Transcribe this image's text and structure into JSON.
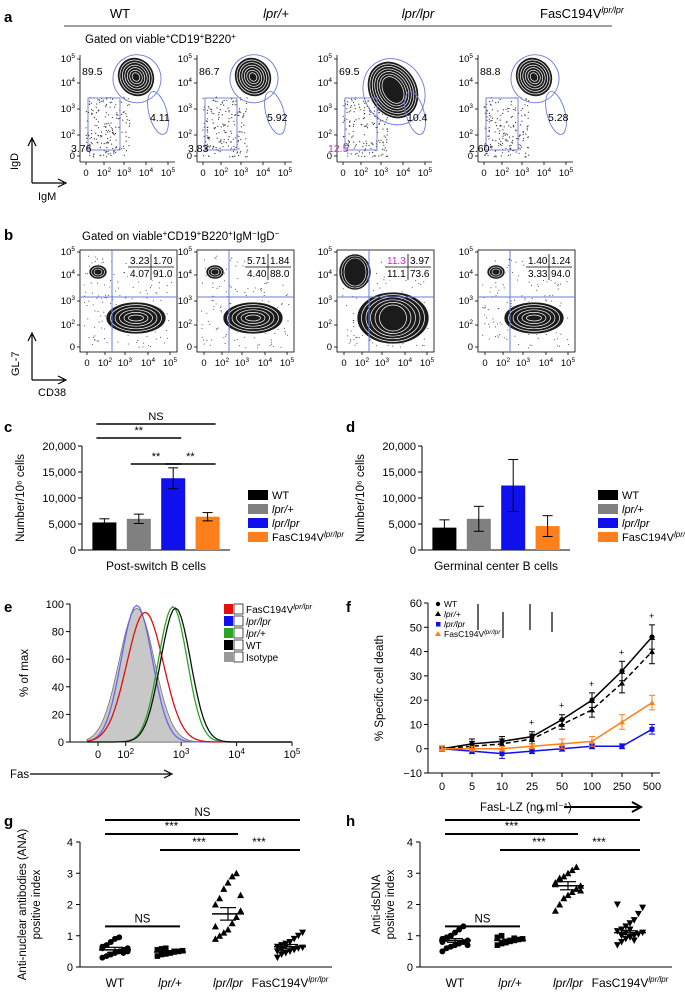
{
  "figure": {
    "panel_letters": [
      "a",
      "b",
      "c",
      "d",
      "e",
      "f",
      "g",
      "h"
    ],
    "genotypes": [
      {
        "base": "WT",
        "sup": ""
      },
      {
        "base": "lpr/+",
        "sup": ""
      },
      {
        "base": "lpr/lpr",
        "sup": ""
      },
      {
        "base": "FasC194V",
        "sup": "lpr/lpr"
      }
    ],
    "colors": {
      "wt": "#000000",
      "het": "#808080",
      "lpr": "#1010ee",
      "fasc": "#ff7f1a",
      "gate": "#6a7bd8",
      "magenta": "#e020d0",
      "fas_red": "#e01010",
      "fas_green": "#2aa52a",
      "fas_blue": "#6868e8",
      "isotype_fill": "#c8c8c8"
    }
  },
  "panel_a": {
    "gate_label": "Gated on viable+CD19+B220+",
    "gate_text": {
      "pre": "Gated on viable",
      "sup": "+",
      "mid": "CD19",
      "sup2": "+",
      "post": "B220",
      "sup3": "+"
    },
    "y_axis_label": "IgD",
    "x_axis_label": "IgM",
    "y_ticks": [
      "0",
      "10²",
      "10³",
      "10⁴",
      "10⁵"
    ],
    "x_ticks": [
      "0",
      "10²",
      "10³",
      "10⁴",
      "10⁵"
    ],
    "y_ticks_plain": [
      "0",
      "10",
      "10",
      "10",
      "10"
    ],
    "x_ticks_plain": [
      "0",
      "10",
      "10",
      "10",
      "10"
    ],
    "tick_exponents": [
      "",
      "2",
      "3",
      "4",
      "5"
    ],
    "gates": [
      {
        "top": "89.5",
        "right": "4.11",
        "bottom_left": "3.76",
        "bottom_left_color": "#000000"
      },
      {
        "top": "86.7",
        "right": "5.92",
        "bottom_left": "3.83",
        "bottom_left_color": "#000000"
      },
      {
        "top": "69.5",
        "right": "10.4",
        "bottom_left": "12.5",
        "bottom_left_color": "#e020d0"
      },
      {
        "top": "88.8",
        "right": "5.28",
        "bottom_left": "2.60",
        "bottom_left_color": "#000000"
      }
    ]
  },
  "panel_b": {
    "gate_text": {
      "pre": "Gated on viable",
      "sup": "+",
      "mid": "CD19",
      "sup2": "+",
      "post1": "B220",
      "sup3": "+",
      "post2": "IgM",
      "sup4": "−",
      "post3": "IgD",
      "sup5": "−"
    },
    "y_axis_label": "GL-7",
    "x_axis_label": "CD38",
    "quadrants": [
      {
        "q": [
          "3.23",
          "1.70",
          "4.07",
          "91.0"
        ],
        "q1_color": "#000000"
      },
      {
        "q": [
          "5.71",
          "1.84",
          "4.40",
          "88.0"
        ],
        "q1_color": "#000000"
      },
      {
        "q": [
          "11.3",
          "3.97",
          "11.1",
          "73.6"
        ],
        "q1_color": "#e020d0"
      },
      {
        "q": [
          "1.40",
          "1.24",
          "3.33",
          "94.0"
        ],
        "q1_color": "#000000"
      }
    ]
  },
  "panel_c": {
    "chart_data": {
      "type": "bar",
      "categories": [
        "WT",
        "lpr/+",
        "lpr/lpr",
        "FasC194V lpr/lpr"
      ],
      "values": [
        5300,
        6000,
        13800,
        6400
      ],
      "errors": [
        700,
        900,
        2000,
        800
      ],
      "ylabel": "Number/10⁶ cells",
      "xlabel": "Post-switch B cells",
      "ylim": [
        0,
        20000
      ],
      "yticks": [
        "0",
        "5,000",
        "10,000",
        "15,000",
        "20,000"
      ],
      "significance": [
        {
          "label": "NS",
          "from": 0,
          "to": 3
        },
        {
          "label": "**",
          "from": 0,
          "to": 2
        },
        {
          "label": "**",
          "from": 1,
          "to": 2
        },
        {
          "label": "**",
          "from": 2,
          "to": 3
        }
      ]
    },
    "legend": [
      "WT",
      "lpr/+",
      "lpr/lpr",
      "FasC194V"
    ]
  },
  "panel_d": {
    "chart_data": {
      "type": "bar",
      "categories": [
        "WT",
        "lpr/+",
        "lpr/lpr",
        "FasC194V lpr/lpr"
      ],
      "values": [
        4300,
        6000,
        12400,
        4600
      ],
      "errors": [
        1500,
        2400,
        5000,
        2000
      ],
      "ylabel": "Number/10⁶ cells",
      "xlabel": "Germinal center B cells",
      "ylim": [
        0,
        20000
      ],
      "yticks": [
        "0",
        "5,000",
        "10,000",
        "15,000",
        "20,000"
      ]
    },
    "legend": [
      "WT",
      "lpr/+",
      "lpr/lpr",
      "FasC194V"
    ]
  },
  "panel_e": {
    "chart_data": {
      "type": "area",
      "xlabel": "Fas",
      "ylabel": "% of max",
      "ylim": [
        0,
        100
      ],
      "yticks": [
        "0",
        "20",
        "40",
        "60",
        "80",
        "100"
      ],
      "x_ticks": [
        "0",
        "10²",
        "10³",
        "10⁴",
        "10⁵"
      ],
      "series": [
        {
          "name": "FasC194V",
          "peak_x": 2.35,
          "peak_y": 94
        },
        {
          "name": "lpr/lpr",
          "peak_x": 2.2,
          "peak_y": 99
        },
        {
          "name": "lpr/+",
          "peak_x": 2.85,
          "peak_y": 98
        },
        {
          "name": "WT",
          "peak_x": 2.9,
          "peak_y": 97
        },
        {
          "name": "Isotype",
          "peak_x": 2.2,
          "peak_y": 97
        }
      ]
    },
    "legend": [
      {
        "label": "FasC194V",
        "sup": "lpr/lpr",
        "italic": false
      },
      {
        "label": "lpr/lpr",
        "sup": "",
        "italic": true
      },
      {
        "label": "lpr/+",
        "sup": "",
        "italic": true
      },
      {
        "label": "WT",
        "sup": "",
        "italic": false
      },
      {
        "label": "Isotype",
        "sup": "",
        "italic": false
      }
    ]
  },
  "panel_f": {
    "chart_data": {
      "type": "line",
      "x_categories": [
        "0",
        "5",
        "10",
        "25",
        "50",
        "100",
        "250",
        "500"
      ],
      "xlabel": "FasL-LZ (ng ml⁻¹)",
      "ylabel": "% Specific cell death",
      "ylim": [
        -10,
        60
      ],
      "yticks": [
        "−10",
        "0",
        "10",
        "20",
        "30",
        "40",
        "50",
        "60"
      ],
      "series": [
        {
          "name": "WT",
          "values": [
            0,
            2,
            3,
            5,
            12,
            20,
            32,
            46
          ],
          "errors": [
            1,
            2,
            2,
            2,
            2,
            3,
            4,
            5
          ]
        },
        {
          "name": "lpr/+",
          "values": [
            0,
            1,
            2,
            4,
            10,
            16,
            27,
            40
          ],
          "errors": [
            1,
            2,
            2,
            2,
            2,
            3,
            4,
            5
          ]
        },
        {
          "name": "lpr/lpr",
          "values": [
            0,
            -1,
            -2,
            -1,
            0,
            1,
            1,
            8
          ],
          "errors": [
            1,
            1,
            2,
            1,
            1,
            1,
            1,
            2
          ]
        },
        {
          "name": "FasC194V",
          "values": [
            0,
            0,
            0,
            1,
            2,
            3,
            11,
            19
          ],
          "errors": [
            1,
            1,
            1,
            1,
            2,
            2,
            3,
            3
          ]
        }
      ]
    },
    "legend": [
      "WT",
      "lpr/+",
      "lpr/lpr",
      "FasC194V"
    ]
  },
  "panel_g": {
    "chart_data": {
      "type": "scatter",
      "categories": [
        "WT",
        "lpr/+",
        "lpr/lpr",
        "FasC194V"
      ],
      "ylabel_line1": "Anti-nuclear antibodies (ANA)",
      "ylabel_line2": "positive index",
      "ylim": [
        0,
        4
      ],
      "yticks": [
        "0",
        "1",
        "2",
        "3",
        "4"
      ],
      "means": [
        0.55,
        0.48,
        1.7,
        0.65
      ],
      "sem": [
        0.08,
        0.04,
        0.2,
        0.07
      ],
      "points": [
        [
          0.3,
          0.35,
          0.4,
          0.45,
          0.5,
          0.55,
          0.6,
          0.65,
          0.7,
          0.8,
          0.9,
          0.95,
          0.45,
          0.5,
          0.6
        ],
        [
          0.35,
          0.4,
          0.42,
          0.45,
          0.48,
          0.5,
          0.52,
          0.55,
          0.58,
          0.6,
          0.45,
          0.5
        ],
        [
          0.9,
          1.0,
          1.1,
          1.2,
          1.4,
          1.6,
          1.8,
          2.0,
          2.2,
          2.5,
          2.7,
          2.9,
          3.0,
          2.3,
          1.3
        ],
        [
          0.3,
          0.4,
          0.45,
          0.5,
          0.55,
          0.6,
          0.62,
          0.65,
          0.7,
          0.75,
          0.8,
          0.9,
          1.0,
          1.1,
          0.5,
          0.55,
          0.65
        ]
      ],
      "significance": [
        {
          "label": "NS",
          "from": 0,
          "to": 3
        },
        {
          "label": "***",
          "from": 0,
          "to": 2
        },
        {
          "label": "***",
          "from": 1,
          "to": 2
        },
        {
          "label": "***",
          "from": 2,
          "to": 3
        },
        {
          "label": "NS",
          "from": 0,
          "to": 1
        }
      ]
    }
  },
  "panel_h": {
    "chart_data": {
      "type": "scatter",
      "categories": [
        "WT",
        "lpr/+",
        "lpr/lpr",
        "FasC194V"
      ],
      "ylabel_line1": "Anti-dsDNA",
      "ylabel_line2": "positive index",
      "ylim": [
        0,
        4
      ],
      "yticks": [
        "0",
        "1",
        "2",
        "3",
        "4"
      ],
      "means": [
        0.85,
        0.85,
        2.6,
        1.1
      ],
      "sem": [
        0.06,
        0.04,
        0.13,
        0.06
      ],
      "points": [
        [
          0.5,
          0.6,
          0.65,
          0.7,
          0.75,
          0.8,
          0.85,
          0.9,
          0.95,
          1.0,
          1.1,
          1.2,
          1.3,
          0.7,
          0.8,
          0.9,
          1.0
        ],
        [
          0.7,
          0.75,
          0.8,
          0.82,
          0.85,
          0.88,
          0.9,
          0.95,
          1.0,
          0.78,
          0.85,
          0.92
        ],
        [
          1.8,
          2.0,
          2.2,
          2.3,
          2.4,
          2.5,
          2.6,
          2.7,
          2.8,
          2.9,
          3.0,
          3.1,
          3.2,
          2.45,
          2.65,
          2.85
        ],
        [
          0.7,
          0.8,
          0.9,
          0.95,
          1.0,
          1.05,
          1.1,
          1.15,
          1.2,
          1.3,
          1.4,
          1.5,
          1.7,
          1.9,
          2.0,
          1.0,
          1.1,
          1.2,
          0.85
        ]
      ],
      "significance": [
        {
          "label": "*",
          "from": 0,
          "to": 3
        },
        {
          "label": "***",
          "from": 0,
          "to": 2
        },
        {
          "label": "***",
          "from": 1,
          "to": 2
        },
        {
          "label": "***",
          "from": 2,
          "to": 3
        },
        {
          "label": "NS",
          "from": 0,
          "to": 1
        }
      ]
    }
  }
}
